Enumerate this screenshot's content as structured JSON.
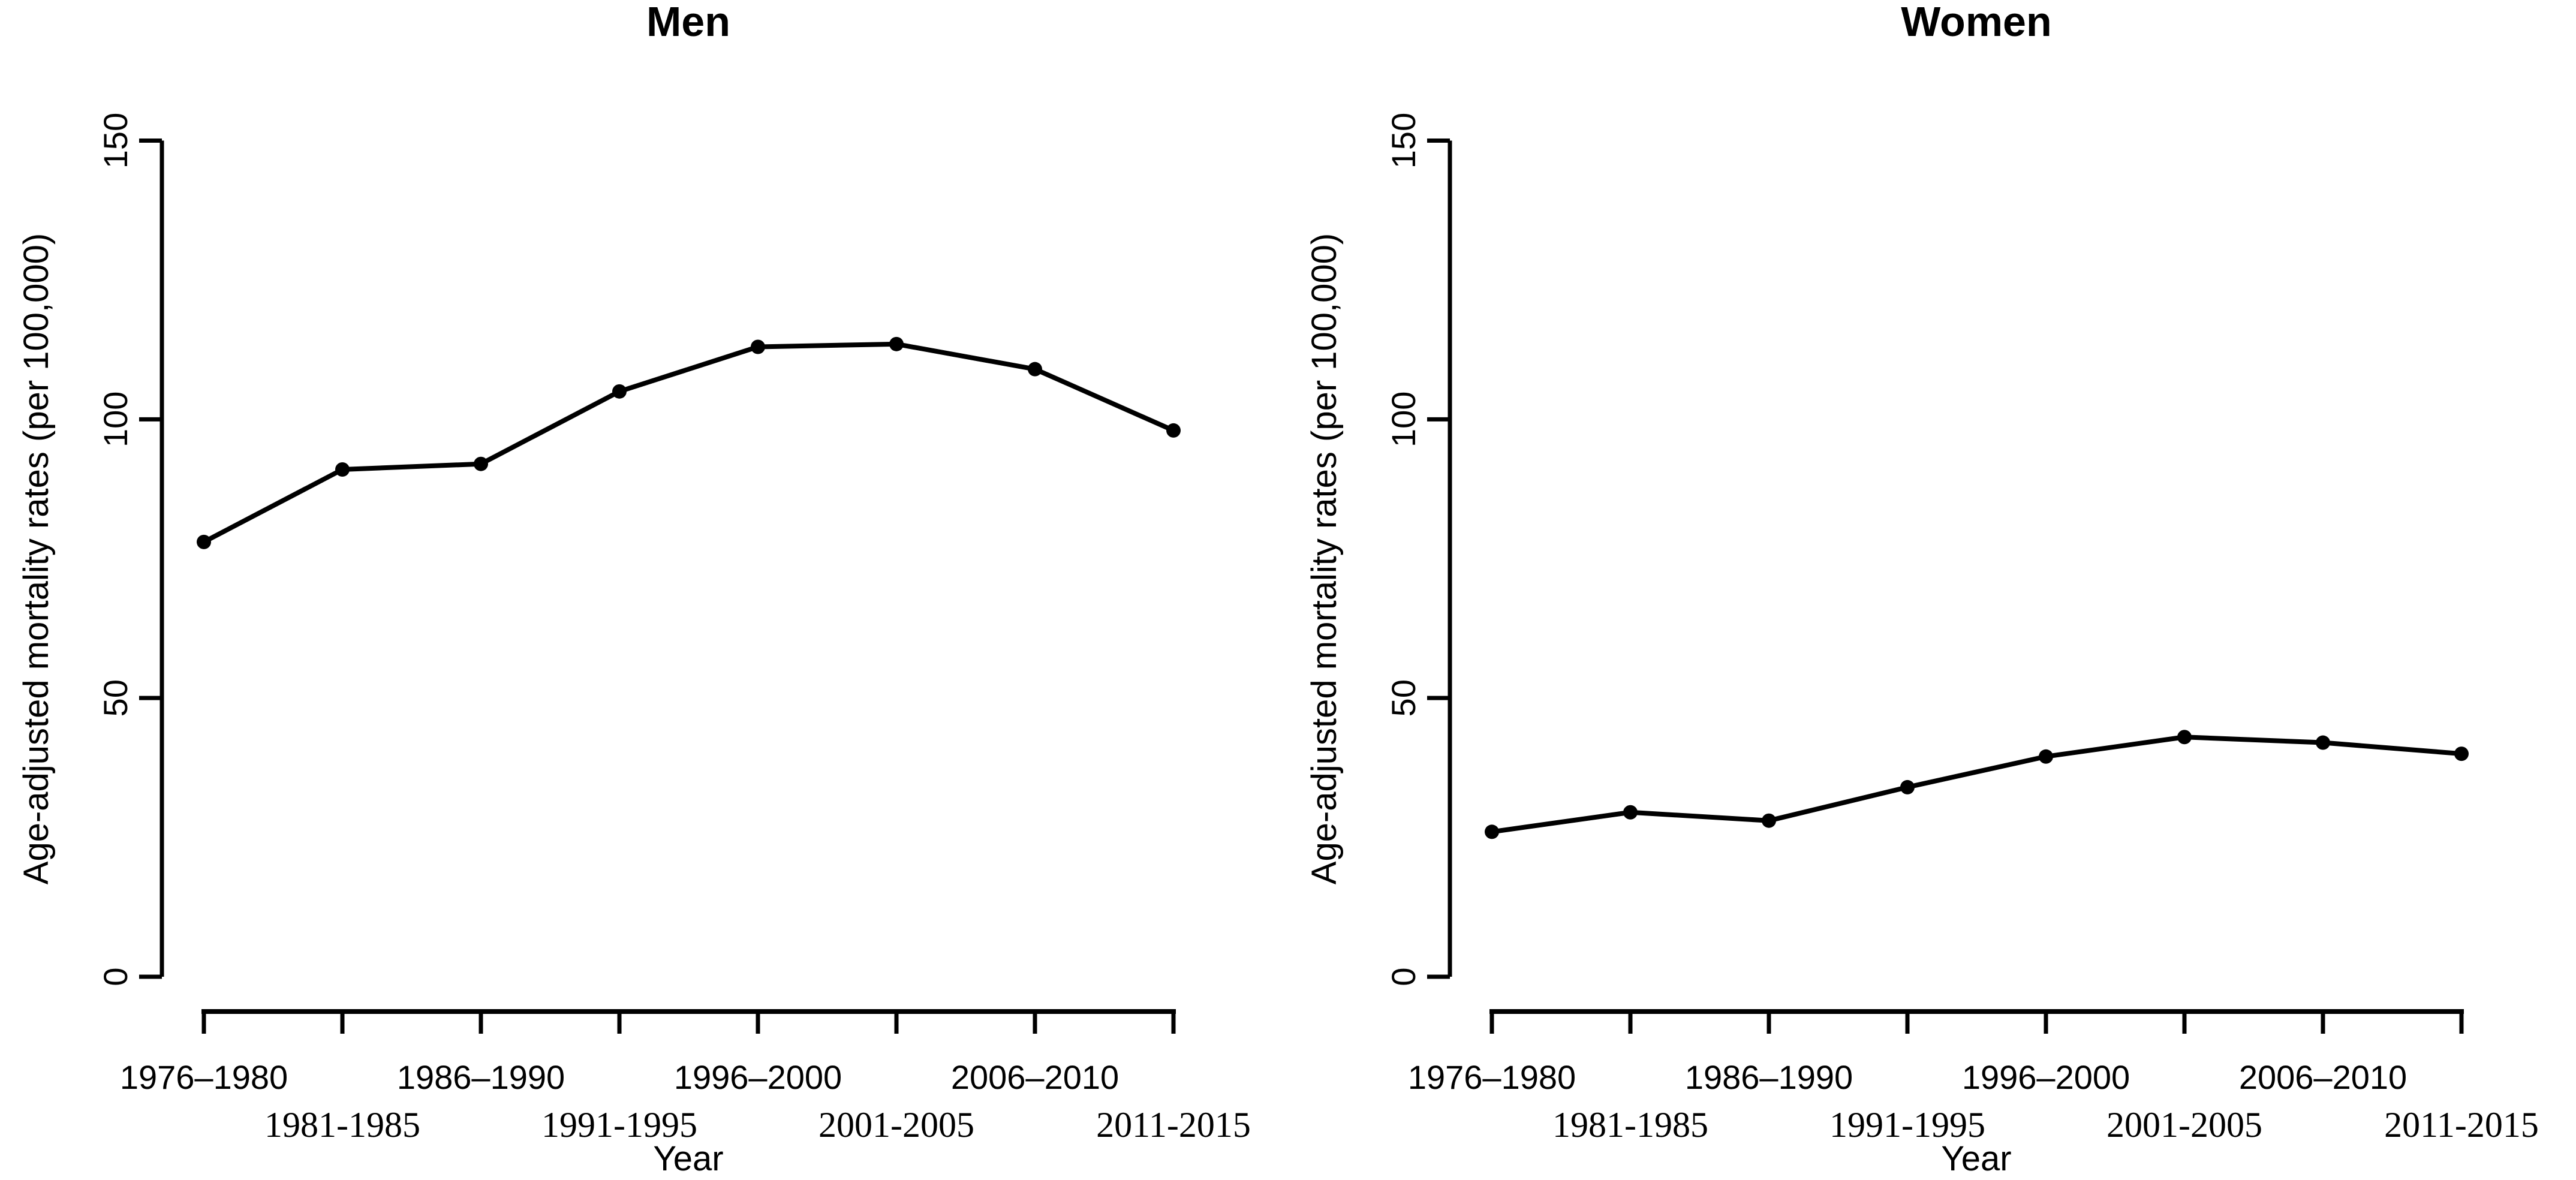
{
  "figure": {
    "background": "#ffffff",
    "ink_color": "#000000",
    "panel_count": 2
  },
  "chart_data": [
    {
      "type": "line",
      "title": "Men",
      "xlabel": "Year",
      "ylabel": "Age-adjusted mortality rates (per 100,000)",
      "categories": [
        "1976–1980",
        "1981-1985",
        "1986–1990",
        "1991-1995",
        "1996–2000",
        "2001-2005",
        "2006–2010",
        "2011-2015"
      ],
      "values": [
        78,
        91,
        92,
        105,
        113,
        113.5,
        109,
        98
      ],
      "ylim": [
        0,
        150
      ],
      "yticks": [
        0,
        50,
        100,
        150
      ],
      "marker": "filled-circle",
      "line_color": "#000000",
      "grid": false,
      "legend": "none"
    },
    {
      "type": "line",
      "title": "Women",
      "xlabel": "Year",
      "ylabel": "Age-adjusted mortality rates (per 100,000)",
      "categories": [
        "1976–1980",
        "1981-1985",
        "1986–1990",
        "1991-1995",
        "1996–2000",
        "2001-2005",
        "2006–2010",
        "2011-2015"
      ],
      "values": [
        26,
        29.5,
        28,
        34,
        39.5,
        43,
        42,
        40
      ],
      "ylim": [
        0,
        150
      ],
      "yticks": [
        0,
        50,
        100,
        150
      ],
      "marker": "filled-circle",
      "line_color": "#000000",
      "grid": false,
      "legend": "none"
    }
  ]
}
